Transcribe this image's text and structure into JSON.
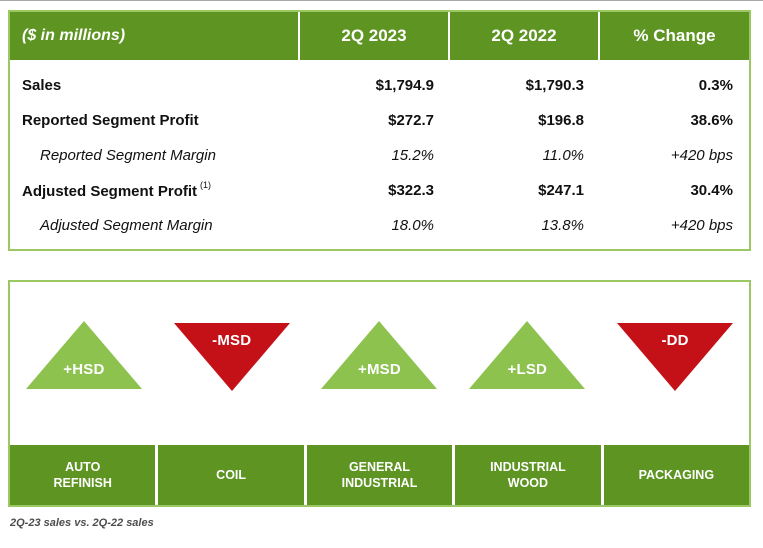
{
  "colors": {
    "dark_green": "#5d9422",
    "light_green": "#8dc24f",
    "border_green": "#9cc863",
    "red": "#c41118"
  },
  "table": {
    "header": {
      "label": "($ in millions)",
      "col_2023": "2Q 2023",
      "col_2022": "2Q 2022",
      "col_change": "% Change"
    },
    "rows": [
      {
        "label": "Sales",
        "sup": "",
        "v2023": "$1,794.9",
        "v2022": "$1,790.3",
        "change": "0.3%"
      },
      {
        "label": "Reported Segment Profit",
        "sup": "",
        "v2023": "$272.7",
        "v2022": "$196.8",
        "change": "38.6%"
      },
      {
        "label": "Reported Segment Margin",
        "sup": "",
        "v2023": "15.2%",
        "v2022": "11.0%",
        "change": "+420 bps"
      },
      {
        "label": "Adjusted Segment Profit",
        "sup": "(1)",
        "v2023": "$322.3",
        "v2022": "$247.1",
        "change": "30.4%"
      },
      {
        "label": "Adjusted Segment Margin",
        "sup": "",
        "v2023": "18.0%",
        "v2022": "13.8%",
        "change": "+420 bps"
      }
    ]
  },
  "segments": {
    "items": [
      {
        "name": "AUTO REFINISH",
        "indicator": "+HSD",
        "direction": "up"
      },
      {
        "name": "COIL",
        "indicator": "-MSD",
        "direction": "down"
      },
      {
        "name": "GENERAL INDUSTRIAL",
        "indicator": "+MSD",
        "direction": "up"
      },
      {
        "name": "INDUSTRIAL WOOD",
        "indicator": "+LSD",
        "direction": "up"
      },
      {
        "name": "PACKAGING",
        "indicator": "-DD",
        "direction": "down"
      }
    ],
    "footnote": "2Q-23 sales vs. 2Q-22 sales"
  },
  "chart_data": [
    {
      "type": "table",
      "title": "($ in millions)",
      "columns": [
        "($ in millions)",
        "2Q 2023",
        "2Q 2022",
        "% Change"
      ],
      "rows": [
        [
          "Sales",
          "$1,794.9",
          "$1,790.3",
          "0.3%"
        ],
        [
          "Reported Segment Profit",
          "$272.7",
          "$196.8",
          "38.6%"
        ],
        [
          "Reported Segment Margin",
          "15.2%",
          "11.0%",
          "+420 bps"
        ],
        [
          "Adjusted Segment Profit (1)",
          "$322.3",
          "$247.1",
          "30.4%"
        ],
        [
          "Adjusted Segment Margin",
          "18.0%",
          "13.8%",
          "+420 bps"
        ]
      ]
    },
    {
      "type": "table",
      "title": "Segment sales trend, 2Q-23 sales vs. 2Q-22 sales",
      "categories": [
        "AUTO REFINISH",
        "COIL",
        "GENERAL INDUSTRIAL",
        "INDUSTRIAL WOOD",
        "PACKAGING"
      ],
      "values": [
        "+HSD",
        "-MSD",
        "+MSD",
        "+LSD",
        "-DD"
      ],
      "directions": [
        "up",
        "down",
        "up",
        "up",
        "down"
      ]
    }
  ]
}
